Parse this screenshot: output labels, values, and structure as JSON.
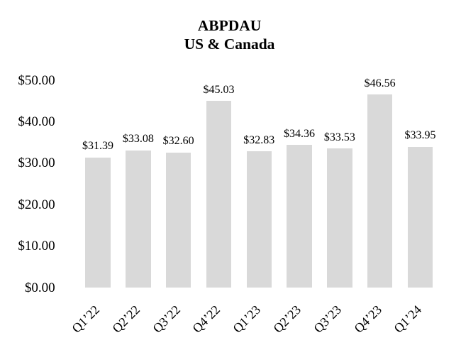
{
  "chart_data": {
    "type": "bar",
    "title_lines": [
      "ABPDAU",
      "US & Canada"
    ],
    "categories": [
      "Q1’22",
      "Q2’22",
      "Q3’22",
      "Q4’22",
      "Q1’23",
      "Q2’23",
      "Q3’23",
      "Q4’23",
      "Q1’24"
    ],
    "values": [
      31.39,
      33.08,
      32.6,
      45.03,
      32.83,
      34.36,
      33.53,
      46.56,
      33.95
    ],
    "data_labels": [
      "$31.39",
      "$33.08",
      "$32.60",
      "$45.03",
      "$32.83",
      "$34.36",
      "$33.53",
      "$46.56",
      "$33.95"
    ],
    "y_tick_labels": [
      "$0.00",
      "$10.00",
      "$20.00",
      "$30.00",
      "$40.00",
      "$50.00"
    ],
    "y_tick_values": [
      0,
      10,
      20,
      30,
      40,
      50
    ],
    "ylim": [
      0,
      50
    ],
    "xlabel": "",
    "ylabel": "",
    "grid": "off",
    "axis_lines": "none",
    "legend": "none",
    "bar_color": "#d9d9d9",
    "text_color": "#000000",
    "background_color": "#ffffff"
  }
}
